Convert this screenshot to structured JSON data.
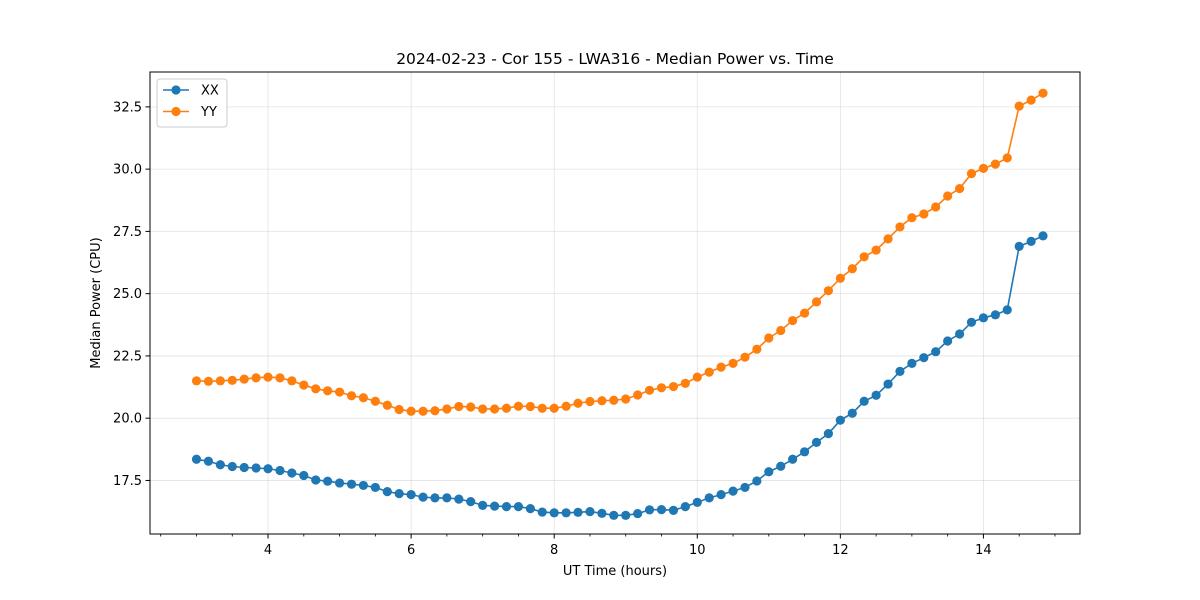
{
  "chart_data": {
    "type": "line",
    "title": "2024-02-23 - Cor 155 - LWA316 - Median Power vs. Time",
    "xlabel": "UT Time (hours)",
    "ylabel": "Median Power (CPU)",
    "xlim": [
      2.35,
      15.35
    ],
    "ylim": [
      15.35,
      33.9
    ],
    "xticks": [
      4,
      6,
      8,
      10,
      12,
      14
    ],
    "xtick_labels": [
      "4",
      "6",
      "8",
      "10",
      "12",
      "14"
    ],
    "yticks": [
      17.5,
      20.0,
      22.5,
      25.0,
      27.5,
      30.0,
      32.5
    ],
    "ytick_labels": [
      "17.5",
      "20.0",
      "22.5",
      "25.0",
      "27.5",
      "30.0",
      "32.5"
    ],
    "grid": true,
    "legend_position": "top-left",
    "x": [
      3.0,
      3.167,
      3.333,
      3.5,
      3.667,
      3.833,
      4.0,
      4.167,
      4.333,
      4.5,
      4.667,
      4.833,
      5.0,
      5.167,
      5.333,
      5.5,
      5.667,
      5.833,
      6.0,
      6.167,
      6.333,
      6.5,
      6.667,
      6.833,
      7.0,
      7.167,
      7.333,
      7.5,
      7.667,
      7.833,
      8.0,
      8.167,
      8.333,
      8.5,
      8.667,
      8.833,
      9.0,
      9.167,
      9.333,
      9.5,
      9.667,
      9.833,
      10.0,
      10.167,
      10.333,
      10.5,
      10.667,
      10.833,
      11.0,
      11.167,
      11.333,
      11.5,
      11.667,
      11.833,
      12.0,
      12.167,
      12.333,
      12.5,
      12.667,
      12.833,
      13.0,
      13.167,
      13.333,
      13.5,
      13.667,
      13.833,
      14.0,
      14.167,
      14.333,
      14.5,
      14.667,
      14.833
    ],
    "series": [
      {
        "name": "XX",
        "color": "#1f77b4",
        "values": [
          18.35,
          18.27,
          18.13,
          18.06,
          18.02,
          18.0,
          17.97,
          17.9,
          17.8,
          17.7,
          17.52,
          17.47,
          17.4,
          17.35,
          17.3,
          17.22,
          17.05,
          16.97,
          16.93,
          16.83,
          16.8,
          16.8,
          16.75,
          16.65,
          16.5,
          16.47,
          16.45,
          16.45,
          16.37,
          16.23,
          16.2,
          16.2,
          16.22,
          16.25,
          16.18,
          16.1,
          16.1,
          16.17,
          16.32,
          16.33,
          16.3,
          16.45,
          16.62,
          16.8,
          16.93,
          17.07,
          17.22,
          17.48,
          17.85,
          18.07,
          18.35,
          18.65,
          19.03,
          19.38,
          19.92,
          20.2,
          20.68,
          20.92,
          21.37,
          21.88,
          22.2,
          22.43,
          22.67,
          23.1,
          23.38,
          23.85,
          24.03,
          24.15,
          24.35,
          26.9,
          27.1,
          27.32
        ]
      },
      {
        "name": "YY",
        "color": "#ff7f0e",
        "values": [
          21.5,
          21.48,
          21.5,
          21.52,
          21.57,
          21.62,
          21.65,
          21.62,
          21.5,
          21.33,
          21.18,
          21.1,
          21.05,
          20.9,
          20.82,
          20.68,
          20.52,
          20.35,
          20.28,
          20.28,
          20.3,
          20.37,
          20.47,
          20.45,
          20.37,
          20.37,
          20.4,
          20.48,
          20.47,
          20.4,
          20.4,
          20.48,
          20.6,
          20.67,
          20.7,
          20.72,
          20.77,
          20.93,
          21.12,
          21.22,
          21.27,
          21.4,
          21.65,
          21.85,
          22.05,
          22.2,
          22.45,
          22.77,
          23.22,
          23.52,
          23.92,
          24.22,
          24.67,
          25.12,
          25.62,
          26.0,
          26.48,
          26.75,
          27.2,
          27.68,
          28.05,
          28.2,
          28.48,
          28.92,
          29.22,
          29.82,
          30.03,
          30.2,
          30.45,
          32.53,
          32.77,
          33.05
        ]
      }
    ]
  }
}
